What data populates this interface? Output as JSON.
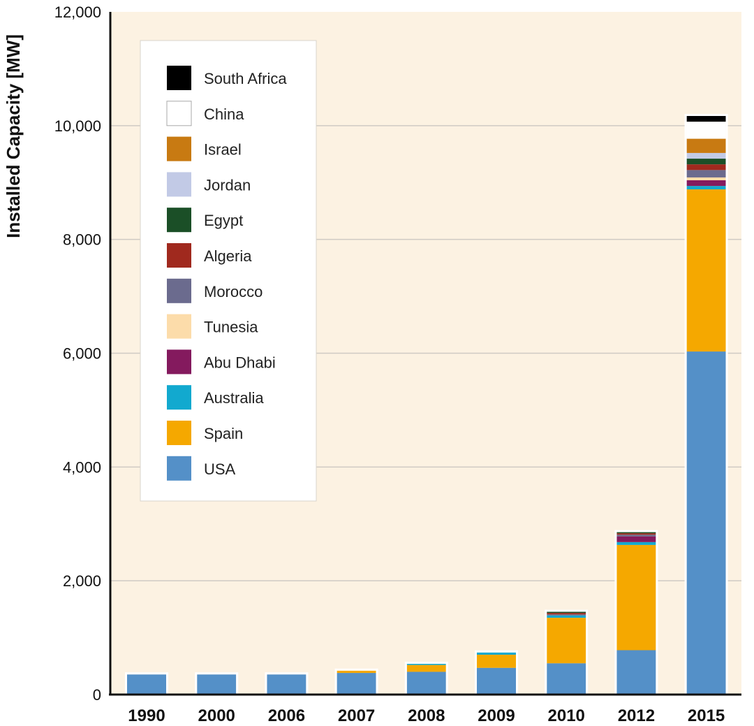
{
  "chart_data": {
    "type": "bar",
    "stacked": true,
    "title": "",
    "xlabel": "",
    "ylabel": "Installed Capacity [MW]",
    "ylim": [
      0,
      12000
    ],
    "yticks": [
      "0",
      "2,000",
      "4,000",
      "6,000",
      "8,000",
      "10,000",
      "12,000"
    ],
    "ytick_values": [
      0,
      2000,
      4000,
      6000,
      8000,
      10000,
      12000
    ],
    "grid": true,
    "legend_position": "top-left",
    "background_color": "#fcf2e2",
    "categories": [
      "1990",
      "2000",
      "2006",
      "2007",
      "2008",
      "2009",
      "2010",
      "2012",
      "2015"
    ],
    "series": [
      {
        "name": "USA",
        "color": "#5490c8",
        "values": [
          354,
          354,
          354,
          380,
          400,
          470,
          550,
          780,
          6030
        ]
      },
      {
        "name": "Spain",
        "color": "#f5a800",
        "values": [
          0,
          0,
          0,
          40,
          120,
          230,
          800,
          1850,
          2850
        ]
      },
      {
        "name": "Australia",
        "color": "#12a9cf",
        "values": [
          0,
          0,
          0,
          0,
          20,
          40,
          40,
          50,
          60
        ]
      },
      {
        "name": "Abu Dhabi",
        "color": "#841a5e",
        "values": [
          0,
          0,
          0,
          0,
          0,
          0,
          0,
          100,
          100
        ]
      },
      {
        "name": "Tunesia",
        "color": "#fcdcaa",
        "values": [
          0,
          0,
          0,
          0,
          0,
          0,
          0,
          0,
          50
        ]
      },
      {
        "name": "Morocco",
        "color": "#6b6b8e",
        "values": [
          0,
          0,
          0,
          0,
          0,
          0,
          20,
          30,
          130
        ]
      },
      {
        "name": "Algeria",
        "color": "#a0291e",
        "values": [
          0,
          0,
          0,
          0,
          0,
          0,
          25,
          25,
          100
        ]
      },
      {
        "name": "Egypt",
        "color": "#1b4f27",
        "values": [
          0,
          0,
          0,
          0,
          0,
          0,
          20,
          20,
          100
        ]
      },
      {
        "name": "Jordan",
        "color": "#c2cae6",
        "values": [
          0,
          0,
          0,
          0,
          0,
          0,
          0,
          0,
          100
        ]
      },
      {
        "name": "Israel",
        "color": "#c87a12",
        "values": [
          0,
          0,
          0,
          0,
          0,
          0,
          0,
          0,
          250
        ]
      },
      {
        "name": "China",
        "color": "#ffffff",
        "values": [
          0,
          0,
          0,
          0,
          0,
          0,
          0,
          0,
          300
        ]
      },
      {
        "name": "South Africa",
        "color": "#000000",
        "values": [
          0,
          0,
          0,
          0,
          0,
          0,
          0,
          0,
          100
        ]
      }
    ]
  }
}
